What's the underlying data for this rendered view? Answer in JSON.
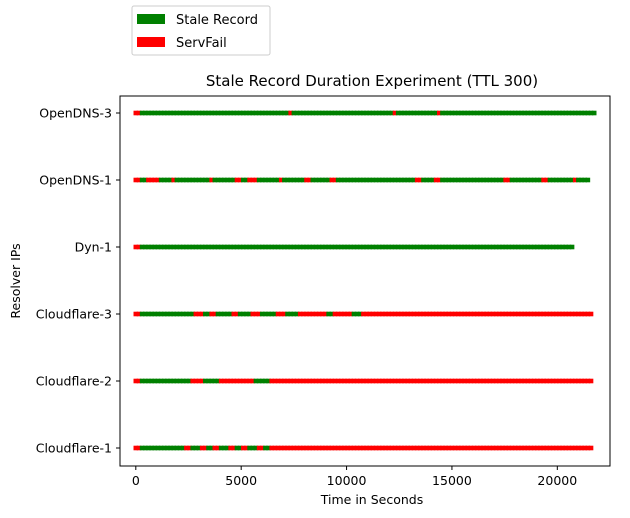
{
  "chart_data": {
    "type": "scatter",
    "title": "Stale Record Duration Experiment (TTL 300)",
    "xlabel": "Time in Seconds",
    "ylabel": "Resolver IPs",
    "xlim": [
      -750,
      22500
    ],
    "xticks": [
      0,
      5000,
      10000,
      15000,
      20000
    ],
    "categories": [
      "Cloudflare-1",
      "Cloudflare-2",
      "Cloudflare-3",
      "Dyn-1",
      "OpenDNS-1",
      "OpenDNS-3"
    ],
    "legend": {
      "placement": "top-left, above plot",
      "entries": [
        {
          "label": "Stale Record",
          "color": "#008000"
        },
        {
          "label": "ServFail",
          "color": "#ff0000"
        }
      ]
    },
    "colors": {
      "stale": "#008000",
      "servfail": "#ff0000"
    },
    "sample_interval_seconds": 150,
    "series": [
      {
        "resolver": "OpenDNS-3",
        "end": 21750,
        "servfail_ranges": [
          [
            0,
            150
          ],
          [
            7350,
            7350
          ],
          [
            12300,
            12300
          ],
          [
            14400,
            14400
          ]
        ]
      },
      {
        "resolver": "OpenDNS-1",
        "end": 21450,
        "servfail_ranges": [
          [
            0,
            150
          ],
          [
            600,
            1050
          ],
          [
            1800,
            1800
          ],
          [
            3600,
            3600
          ],
          [
            4800,
            4950
          ],
          [
            5400,
            5700
          ],
          [
            6900,
            6900
          ],
          [
            8100,
            8250
          ],
          [
            9300,
            9450
          ],
          [
            13350,
            13500
          ],
          [
            14250,
            14400
          ],
          [
            17550,
            17700
          ],
          [
            19350,
            19500
          ],
          [
            20850,
            20850
          ]
        ]
      },
      {
        "resolver": "Dyn-1",
        "end": 20700,
        "servfail_ranges": [
          [
            0,
            150
          ]
        ]
      },
      {
        "resolver": "Cloudflare-3",
        "end": 21600,
        "servfail_ranges": [
          [
            0,
            150
          ],
          [
            2850,
            3150
          ],
          [
            3600,
            3750
          ],
          [
            4650,
            4800
          ],
          [
            5550,
            5850
          ],
          [
            6750,
            7050
          ],
          [
            7800,
            9000
          ],
          [
            9450,
            10200
          ],
          [
            10800,
            21600
          ]
        ]
      },
      {
        "resolver": "Cloudflare-2",
        "end": 21600,
        "servfail_ranges": [
          [
            0,
            150
          ],
          [
            2700,
            3150
          ],
          [
            4050,
            5550
          ],
          [
            6450,
            21600
          ]
        ]
      },
      {
        "resolver": "Cloudflare-1",
        "end": 21600,
        "servfail_ranges": [
          [
            0,
            150
          ],
          [
            2400,
            2550
          ],
          [
            3150,
            3300
          ],
          [
            3750,
            3900
          ],
          [
            4500,
            4650
          ],
          [
            5100,
            5250
          ],
          [
            5850,
            6000
          ],
          [
            6450,
            21600
          ]
        ]
      }
    ]
  }
}
